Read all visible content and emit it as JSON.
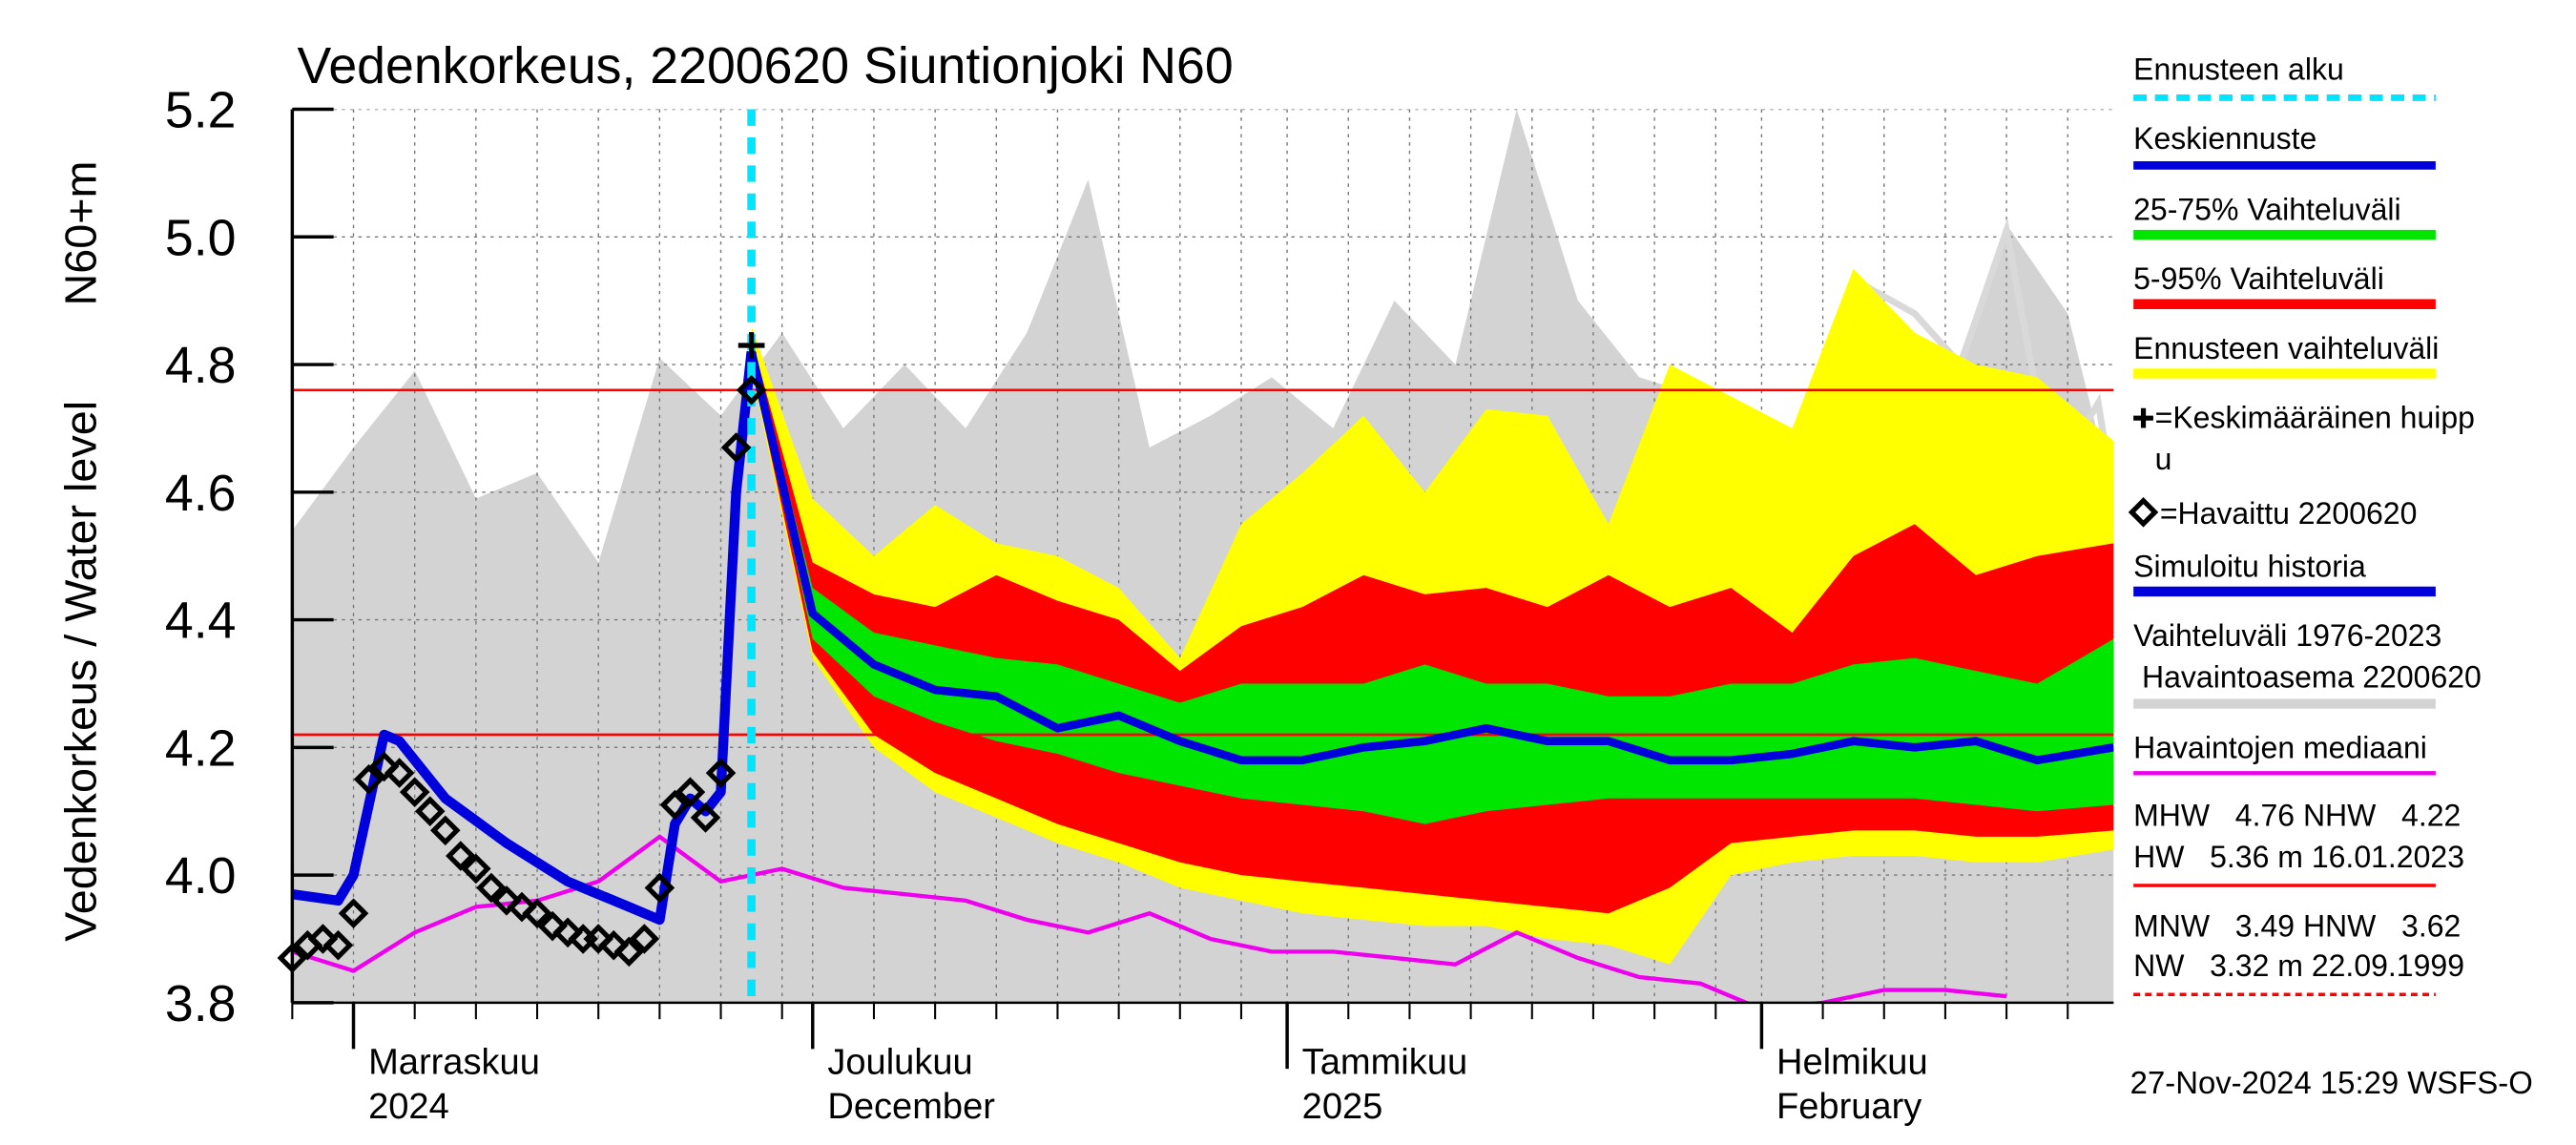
{
  "chart_data": {
    "type": "line",
    "title": "Vedenkorkeus, 2200620 Siuntionjoki N60",
    "ylabel": "Vedenkorkeus / Water level",
    "yunit": "N60+m",
    "footer": "27-Nov-2024 15:29 WSFS-O",
    "xlim": [
      0,
      119
    ],
    "ylim": [
      3.8,
      5.2
    ],
    "yticks": [
      3.8,
      {
        "value": 4.0,
        "label": "4.0"
      },
      4.2,
      4.4,
      4.6,
      4.8,
      {
        "value": 5.0,
        "label": "5.0"
      },
      5.2
    ],
    "xticks": [
      {
        "value": 4,
        "label": "Marraskuu\n2024"
      },
      {
        "value": 34,
        "label": "Joulukuu\nDecember"
      },
      {
        "value": 65,
        "label": "Tammikuu\n2025"
      },
      {
        "value": 96,
        "label": "Helmikuu\nFebruary"
      }
    ],
    "xminor": [
      0,
      8,
      12,
      16,
      20,
      24,
      28,
      32,
      38,
      42,
      46,
      50,
      54,
      58,
      62,
      69,
      73,
      77,
      81,
      85,
      89,
      93,
      100,
      104,
      108,
      112,
      116
    ],
    "grid": true,
    "forecast_start": {
      "name": "Ennusteen alku",
      "x": 30,
      "color": "#00e5ff"
    },
    "hlines": [
      {
        "value": 4.76,
        "color": "#ff0000"
      },
      {
        "value": 4.22,
        "color": "#ff0000"
      }
    ],
    "history_band": {
      "name": "Vaihteluväli 1976-2023\n Havaintoasema 2200620",
      "color": "#d3d3d3",
      "x": [
        0,
        4,
        8,
        12,
        16,
        20,
        24,
        28,
        32,
        36,
        40,
        44,
        48,
        52,
        56,
        60,
        64,
        68,
        72,
        76,
        80,
        84,
        88,
        92,
        96,
        100,
        104,
        108,
        112,
        116,
        119
      ],
      "upper": [
        4.54,
        4.67,
        4.79,
        4.59,
        4.63,
        4.49,
        4.81,
        4.72,
        4.85,
        4.7,
        4.8,
        4.7,
        4.85,
        5.09,
        4.67,
        4.72,
        4.78,
        4.7,
        4.9,
        4.8,
        5.2,
        4.9,
        4.78,
        4.75,
        4.67,
        4.72,
        4.85,
        4.75,
        5.02,
        4.88,
        4.59
      ]
    },
    "extra_line": {
      "color": "#d9d9d9",
      "x": [
        88,
        89,
        91,
        93,
        95,
        97,
        98,
        101,
        103,
        106,
        109,
        112,
        114,
        116,
        118,
        119
      ],
      "values": [
        4.36,
        4.45,
        4.35,
        4.31,
        4.39,
        4.4,
        4.58,
        4.62,
        4.92,
        4.88,
        4.8,
        5.01,
        4.75,
        4.66,
        4.74,
        4.59
      ]
    },
    "bands": [
      {
        "name": "Ennusteen vaihteluväli",
        "color": "#ffff00",
        "x": [
          30,
          34,
          38,
          42,
          46,
          50,
          54,
          58,
          62,
          66,
          70,
          74,
          78,
          82,
          86,
          90,
          94,
          98,
          102,
          106,
          110,
          114,
          119
        ],
        "upper": [
          4.86,
          4.59,
          4.5,
          4.58,
          4.52,
          4.5,
          4.45,
          4.34,
          4.55,
          4.63,
          4.72,
          4.6,
          4.73,
          4.72,
          4.55,
          4.8,
          4.75,
          4.7,
          4.95,
          4.85,
          4.8,
          4.78,
          4.68
        ],
        "lower": [
          4.79,
          4.34,
          4.2,
          4.13,
          4.09,
          4.05,
          4.02,
          3.98,
          3.96,
          3.94,
          3.93,
          3.92,
          3.92,
          3.9,
          3.89,
          3.86,
          4.0,
          4.02,
          4.03,
          4.03,
          4.02,
          4.02,
          4.04
        ]
      },
      {
        "name": "5-95% Vaihteluväli",
        "color": "#ff0000",
        "x": [
          30,
          34,
          38,
          42,
          46,
          50,
          54,
          58,
          62,
          66,
          70,
          74,
          78,
          82,
          86,
          90,
          94,
          98,
          102,
          106,
          110,
          114,
          119
        ],
        "upper": [
          4.84,
          4.49,
          4.44,
          4.42,
          4.47,
          4.43,
          4.4,
          4.32,
          4.39,
          4.42,
          4.47,
          4.44,
          4.45,
          4.42,
          4.47,
          4.42,
          4.45,
          4.38,
          4.5,
          4.55,
          4.47,
          4.5,
          4.52
        ],
        "lower": [
          4.8,
          4.35,
          4.22,
          4.16,
          4.12,
          4.08,
          4.05,
          4.02,
          4.0,
          3.99,
          3.98,
          3.97,
          3.96,
          3.95,
          3.94,
          3.98,
          4.05,
          4.06,
          4.07,
          4.07,
          4.06,
          4.06,
          4.07
        ]
      },
      {
        "name": "25-75% Vaihteluväli",
        "color": "#00e600",
        "x": [
          30,
          34,
          38,
          42,
          46,
          50,
          54,
          58,
          62,
          66,
          70,
          74,
          78,
          82,
          86,
          90,
          94,
          98,
          102,
          106,
          110,
          114,
          119
        ],
        "upper": [
          4.83,
          4.45,
          4.38,
          4.36,
          4.34,
          4.33,
          4.3,
          4.27,
          4.3,
          4.3,
          4.3,
          4.33,
          4.3,
          4.3,
          4.28,
          4.28,
          4.3,
          4.3,
          4.33,
          4.34,
          4.32,
          4.3,
          4.37
        ],
        "lower": [
          4.81,
          4.37,
          4.28,
          4.24,
          4.21,
          4.19,
          4.16,
          4.14,
          4.12,
          4.11,
          4.1,
          4.08,
          4.1,
          4.11,
          4.12,
          4.12,
          4.12,
          4.12,
          4.12,
          4.12,
          4.11,
          4.1,
          4.11
        ]
      }
    ],
    "median": {
      "name": "Havaintojen mediaani",
      "color": "#ee00ee",
      "x": [
        0,
        4,
        8,
        12,
        16,
        20,
        24,
        28,
        32,
        36,
        40,
        44,
        48,
        52,
        56,
        60,
        64,
        68,
        72,
        76,
        80,
        84,
        88,
        92,
        96,
        100,
        104,
        108,
        112,
        116,
        119
      ],
      "values": [
        3.88,
        3.85,
        3.91,
        3.95,
        3.96,
        3.99,
        4.06,
        3.99,
        4.01,
        3.98,
        3.97,
        3.96,
        3.93,
        3.91,
        3.94,
        3.9,
        3.88,
        3.88,
        3.87,
        3.86,
        3.91,
        3.87,
        3.84,
        3.83,
        3.79,
        3.8,
        3.82,
        3.82,
        3.81,
        null,
        null
      ]
    },
    "mean_forecast": {
      "name": "Keskiennuste",
      "color": "#0000dd",
      "x": [
        30,
        34,
        38,
        42,
        46,
        50,
        54,
        58,
        62,
        66,
        70,
        74,
        78,
        82,
        86,
        90,
        94,
        98,
        102,
        106,
        110,
        114,
        119
      ],
      "values": [
        4.82,
        4.41,
        4.33,
        4.29,
        4.28,
        4.23,
        4.25,
        4.21,
        4.18,
        4.18,
        4.2,
        4.21,
        4.23,
        4.21,
        4.21,
        4.18,
        4.18,
        4.19,
        4.21,
        4.2,
        4.21,
        4.18,
        4.2
      ]
    },
    "simulated": {
      "name": "Simuloitu historia",
      "color": "#0000dd",
      "x": [
        0,
        3,
        4,
        6,
        7,
        10,
        14,
        18,
        22,
        24,
        25,
        26,
        27,
        28,
        29,
        30
      ],
      "values": [
        3.97,
        3.96,
        4.0,
        4.22,
        4.21,
        4.12,
        4.05,
        3.99,
        3.95,
        3.93,
        4.08,
        4.12,
        4.1,
        4.13,
        4.6,
        4.82
      ]
    },
    "observed": {
      "name": "=Havaittu 2200620",
      "color": "#000000",
      "x": [
        0,
        1,
        2,
        3,
        4,
        5,
        6,
        7,
        8,
        9,
        10,
        11,
        12,
        13,
        14,
        15,
        16,
        17,
        18,
        19,
        20,
        21,
        22,
        23,
        24,
        25,
        26,
        27,
        28,
        29,
        30
      ],
      "values": [
        3.87,
        3.89,
        3.9,
        3.89,
        3.94,
        4.15,
        4.17,
        4.16,
        4.13,
        4.1,
        4.07,
        4.03,
        4.01,
        3.98,
        3.96,
        3.95,
        3.94,
        3.92,
        3.91,
        3.9,
        3.9,
        3.89,
        3.88,
        3.9,
        3.98,
        4.11,
        4.13,
        4.09,
        4.16,
        4.67,
        4.76
      ]
    },
    "peak": {
      "name": "=Keskimääräinen huipp\nu",
      "x": 30,
      "value": 4.83,
      "color": "#000000"
    },
    "stats": [
      {
        "text": "MHW   4.76 NHW   4.22"
      },
      {
        "text": "HW   5.36 m 16.01.2023",
        "color": "#ff0000",
        "dash": false
      },
      {
        "text": "MNW   3.49 HNW   3.62"
      },
      {
        "text": "NW   3.32 m 22.09.1999",
        "color": "#ff0000",
        "dash": true
      }
    ]
  }
}
